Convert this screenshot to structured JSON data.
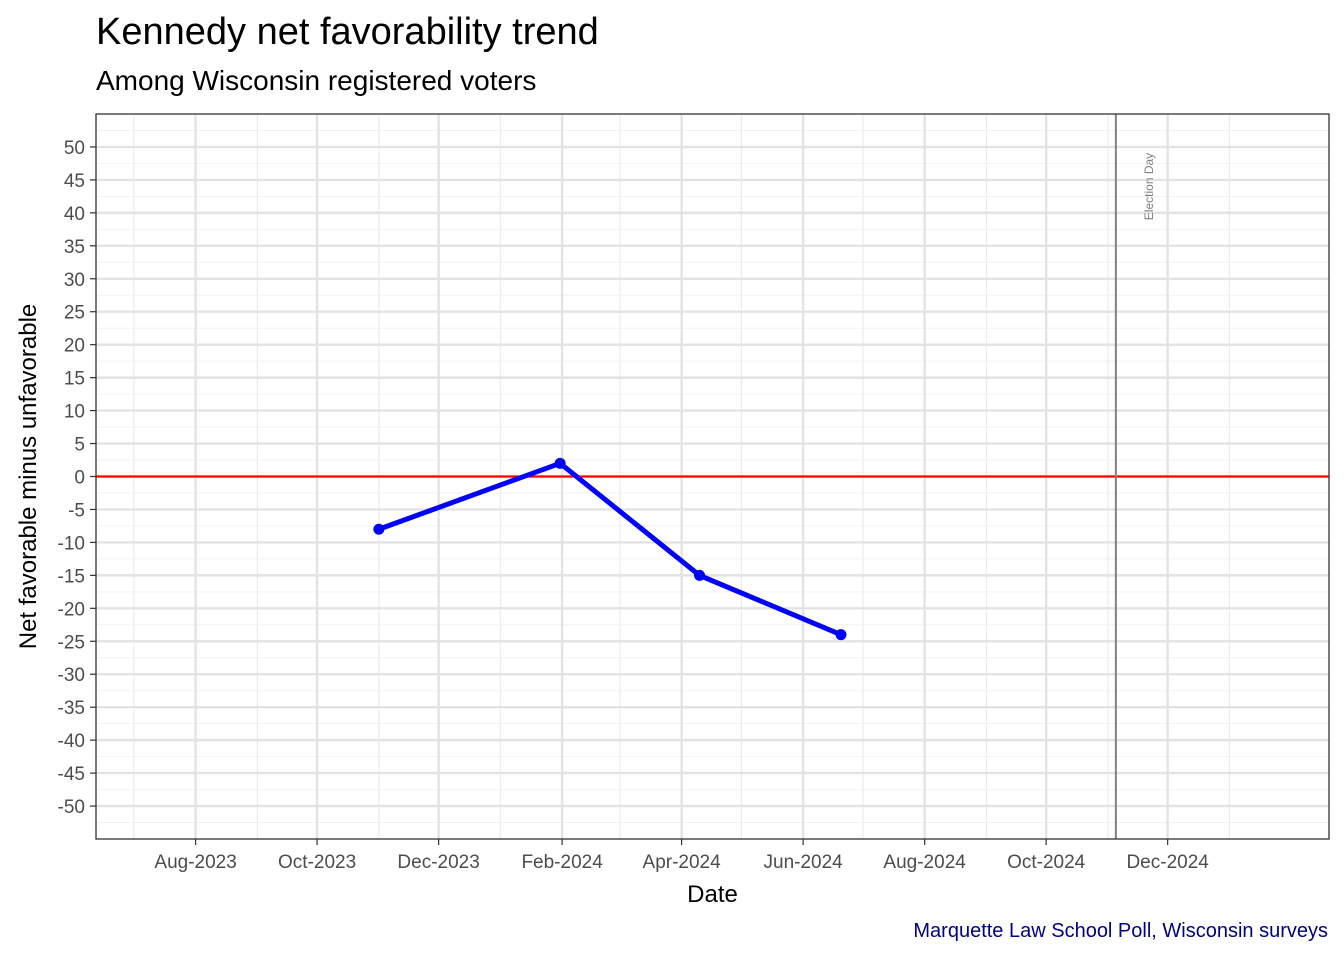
{
  "chart_data": {
    "type": "line",
    "title": "Kennedy net favorability trend",
    "subtitle": "Among Wisconsin registered voters",
    "xlabel": "Date",
    "ylabel": "Net favorable minus unfavorable",
    "caption": "Marquette Law School Poll, Wisconsin surveys",
    "xlim": [
      "2023-06-12",
      "2025-02-20"
    ],
    "ylim": [
      -55,
      55
    ],
    "x_ticks": [
      {
        "date": "2023-08-01",
        "label": "Aug-2023"
      },
      {
        "date": "2023-10-01",
        "label": "Oct-2023"
      },
      {
        "date": "2023-12-01",
        "label": "Dec-2023"
      },
      {
        "date": "2024-02-01",
        "label": "Feb-2024"
      },
      {
        "date": "2024-04-01",
        "label": "Apr-2024"
      },
      {
        "date": "2024-06-01",
        "label": "Jun-2024"
      },
      {
        "date": "2024-08-01",
        "label": "Aug-2024"
      },
      {
        "date": "2024-10-01",
        "label": "Oct-2024"
      },
      {
        "date": "2024-12-01",
        "label": "Dec-2024"
      }
    ],
    "x_minor_ticks": [
      "2023-07-01",
      "2023-09-01",
      "2023-11-01",
      "2024-01-01",
      "2024-03-01",
      "2024-05-01",
      "2024-07-01",
      "2024-09-01",
      "2024-11-01",
      "2025-01-01"
    ],
    "y_ticks": [
      50,
      45,
      40,
      35,
      30,
      25,
      20,
      15,
      10,
      5,
      0,
      -5,
      -10,
      -15,
      -20,
      -25,
      -30,
      -35,
      -40,
      -45,
      -50
    ],
    "series": [
      {
        "color": "#0000FF",
        "points": [
          {
            "x": "2023-11-01",
            "y": -8
          },
          {
            "x": "2024-01-31",
            "y": 2
          },
          {
            "x": "2024-04-10",
            "y": -15
          },
          {
            "x": "2024-06-20",
            "y": -24
          }
        ]
      }
    ],
    "reference_line": {
      "y": 0,
      "color": "#FF0000"
    },
    "event_line": {
      "x": "2024-11-05",
      "label": "Election Day",
      "color": "#808080"
    },
    "grid": true,
    "legend": "none"
  }
}
